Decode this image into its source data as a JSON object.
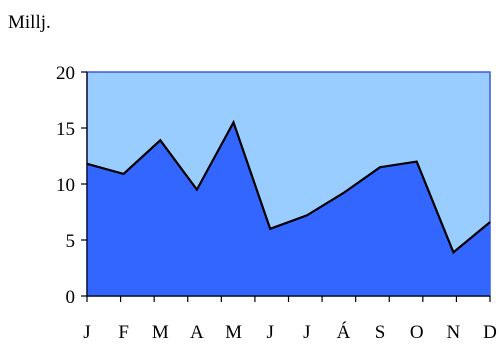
{
  "chart_data": {
    "type": "area",
    "unit_label": "Millj.",
    "categories": [
      "J",
      "F",
      "M",
      "A",
      "M",
      "J",
      "J",
      "Á",
      "S",
      "O",
      "N",
      "D"
    ],
    "values": [
      11.8,
      10.9,
      13.9,
      9.5,
      15.5,
      6.0,
      7.2,
      9.2,
      11.5,
      12.0,
      3.9,
      6.6
    ],
    "ylim": [
      0,
      20
    ],
    "yticks": [
      0,
      5,
      10,
      15,
      20
    ],
    "grid": false,
    "colors": {
      "area_fill": "#3366ff",
      "plot_background": "#99ccff",
      "line": "#000000"
    }
  }
}
